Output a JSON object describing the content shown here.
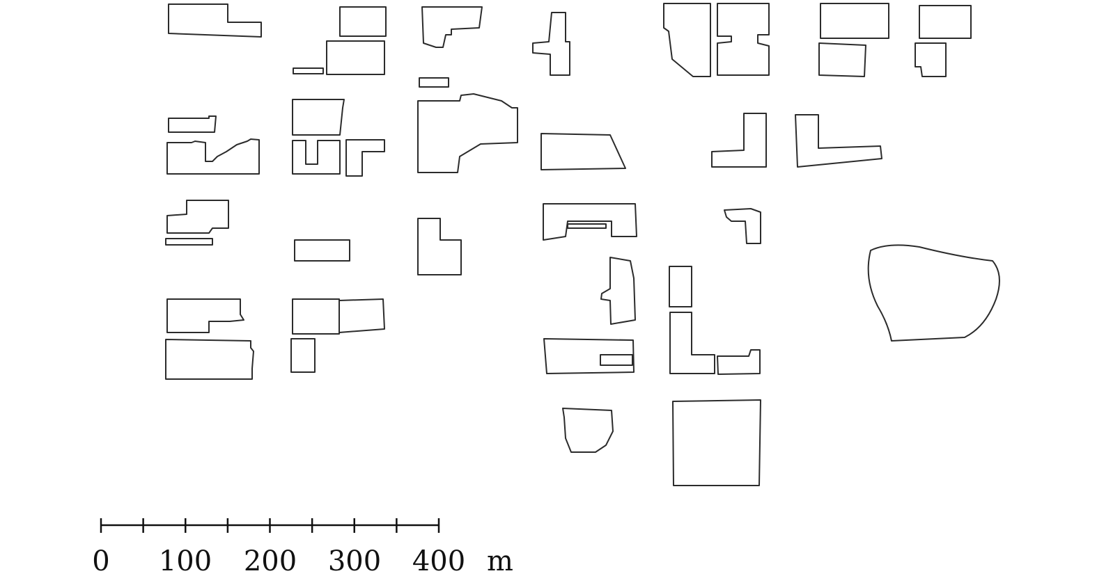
{
  "map": {
    "content": "building footprints",
    "line_color": "#2b2b2b"
  },
  "scale_bar": {
    "tick_labels": [
      "0",
      "100",
      "200",
      "300",
      "400"
    ],
    "unit": "m",
    "max_value": 400,
    "minor_tick_interval": 50
  }
}
